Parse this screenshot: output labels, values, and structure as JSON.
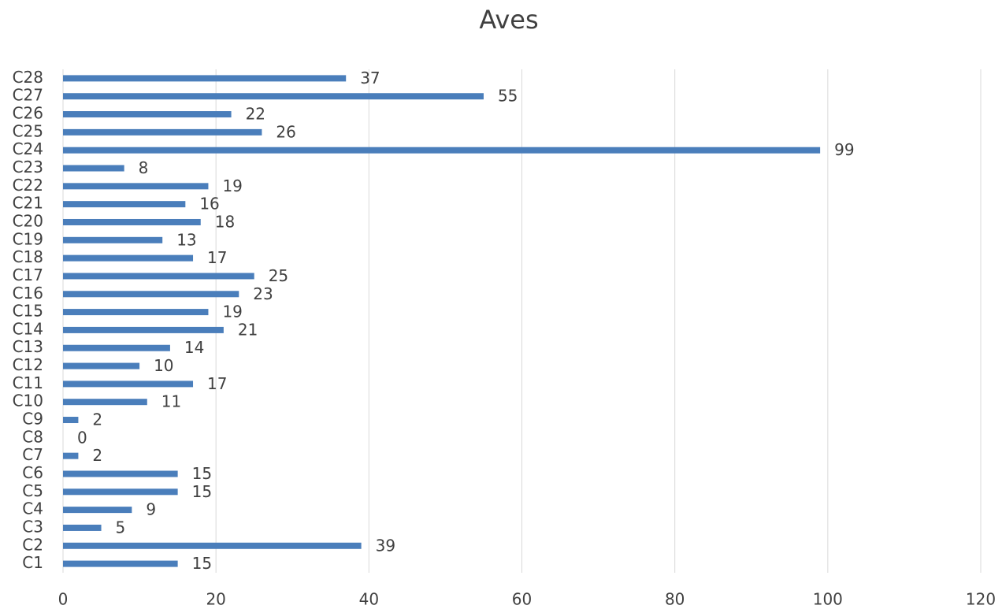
{
  "chart_data": {
    "type": "bar",
    "orientation": "horizontal",
    "title": "Aves",
    "categories": [
      "C1",
      "C2",
      "C3",
      "C4",
      "C5",
      "C6",
      "C7",
      "C8",
      "C9",
      "C10",
      "C11",
      "C12",
      "C13",
      "C14",
      "C15",
      "C16",
      "C17",
      "C18",
      "C19",
      "C20",
      "C21",
      "C22",
      "C23",
      "C24",
      "C25",
      "C26",
      "C27",
      "C28"
    ],
    "values": [
      15,
      39,
      5,
      9,
      15,
      15,
      2,
      0,
      2,
      11,
      17,
      10,
      14,
      21,
      19,
      23,
      25,
      17,
      13,
      18,
      16,
      19,
      8,
      99,
      26,
      22,
      55,
      37
    ],
    "color": "#4a7ebb",
    "xlim": [
      0,
      120
    ],
    "xticks": [
      0,
      20,
      40,
      60,
      80,
      100,
      120
    ],
    "grid": true
  }
}
